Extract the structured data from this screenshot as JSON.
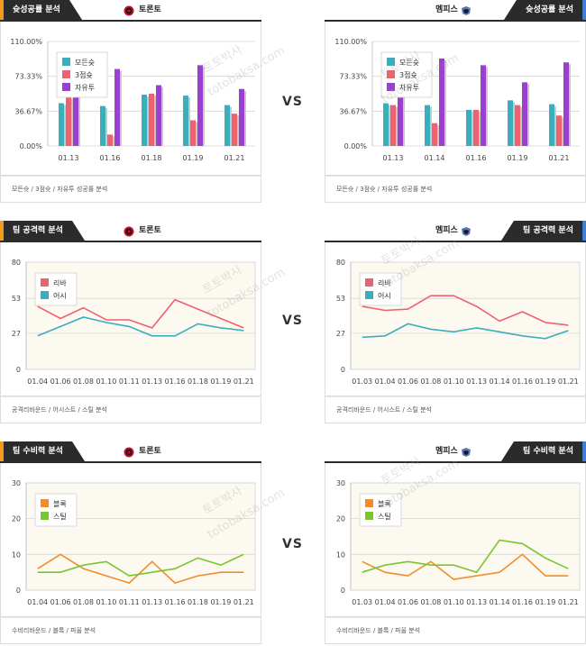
{
  "colors": {
    "bar1": "#3aaebb",
    "bar2": "#ef6070",
    "bar3": "#9b3fd0",
    "line_rebound": "#ef6070",
    "line_assist": "#3aaebb",
    "line_block": "#f28c2a",
    "line_steal": "#7ac52d",
    "plot_bg": "#fcfaf0",
    "tab_bg": "#2b2b2b",
    "tab_accent_left": "#f29a1e",
    "tab_accent_right": "#3d7fd6"
  },
  "vs_label": "VS",
  "watermark": [
    "토토박사",
    "totobaksa.com"
  ],
  "rows": [
    {
      "left": {
        "tab": "슛성공률 분석",
        "team": "토론토",
        "logo_icon": "raptors-logo-icon",
        "caption": "모든슛 / 3점슛 / 자유투 성공률 분석",
        "chart_data": {
          "type": "bar",
          "categories": [
            "01.13",
            "01.16",
            "01.18",
            "01.19",
            "01.21"
          ],
          "ylim": [
            0,
            110
          ],
          "yticks": [
            0,
            36.67,
            73.33,
            110
          ],
          "ytick_labels": [
            "0.00%",
            "36.67%",
            "73.33%",
            "110.00%"
          ],
          "series": [
            {
              "name": "모든슛",
              "values": [
                45,
                42,
                54,
                53,
                43
              ]
            },
            {
              "name": "3점슛",
              "values": [
                52,
                12,
                55,
                27,
                34
              ]
            },
            {
              "name": "자유투",
              "values": [
                62,
                81,
                64,
                85,
                60
              ]
            }
          ],
          "legend": "top-left"
        }
      },
      "right": {
        "tab": "슛성공률 분석",
        "team": "멤피스",
        "logo_icon": "grizzlies-logo-icon",
        "caption": "모든슛 / 3점슛 / 자유투 성공률 분석",
        "chart_data": {
          "type": "bar",
          "categories": [
            "01.13",
            "01.14",
            "01.16",
            "01.19",
            "01.21"
          ],
          "ylim": [
            0,
            110
          ],
          "yticks": [
            0,
            36.67,
            73.33,
            110
          ],
          "ytick_labels": [
            "0.00%",
            "36.67%",
            "73.33%",
            "110.00%"
          ],
          "series": [
            {
              "name": "모든슛",
              "values": [
                45,
                43,
                38,
                48,
                44
              ]
            },
            {
              "name": "3점슛",
              "values": [
                43,
                24,
                38,
                43,
                32
              ]
            },
            {
              "name": "자유투",
              "values": [
                65,
                92,
                85,
                67,
                88
              ]
            }
          ],
          "legend": "top-left"
        }
      }
    },
    {
      "left": {
        "tab": "팀 공격력 분석",
        "team": "토론토",
        "logo_icon": "raptors-logo-icon",
        "caption": "공격리바운드 / 어시스트 / 스틸 분석",
        "chart_data": {
          "type": "line",
          "categories": [
            "01.04",
            "01.06",
            "01.08",
            "01.10",
            "01.11",
            "01.13",
            "01.16",
            "01.18",
            "01.19",
            "01.21"
          ],
          "ylim": [
            0,
            80
          ],
          "yticks": [
            0,
            27,
            53,
            80
          ],
          "ytick_labels": [
            "0",
            "27",
            "53",
            "80"
          ],
          "series": [
            {
              "name": "리바",
              "values": [
                47,
                38,
                46,
                37,
                37,
                31,
                52,
                45,
                38,
                31
              ]
            },
            {
              "name": "어시",
              "values": [
                25,
                32,
                39,
                35,
                32,
                25,
                25,
                34,
                31,
                29
              ]
            }
          ],
          "legend": "top-left"
        }
      },
      "right": {
        "tab": "팀 공격력 분석",
        "team": "멤피스",
        "logo_icon": "grizzlies-logo-icon",
        "caption": "공격리바운드 / 어시스트 / 스틸 분석",
        "chart_data": {
          "type": "line",
          "categories": [
            "01.03",
            "01.04",
            "01.06",
            "01.08",
            "01.10",
            "01.13",
            "01.14",
            "01.16",
            "01.19",
            "01.21"
          ],
          "ylim": [
            0,
            80
          ],
          "yticks": [
            0,
            27,
            53,
            80
          ],
          "ytick_labels": [
            "0",
            "27",
            "53",
            "80"
          ],
          "series": [
            {
              "name": "리바",
              "values": [
                47,
                44,
                45,
                55,
                55,
                47,
                36,
                43,
                35,
                33
              ]
            },
            {
              "name": "어시",
              "values": [
                24,
                25,
                34,
                30,
                28,
                31,
                28,
                25,
                23,
                29
              ]
            }
          ],
          "legend": "top-left"
        }
      }
    },
    {
      "left": {
        "tab": "팀 수비력 분석",
        "team": "토론토",
        "logo_icon": "raptors-logo-icon",
        "caption": "수비리바운드 / 블록 / 파울 분석",
        "chart_data": {
          "type": "line",
          "categories": [
            "01.04",
            "01.06",
            "01.08",
            "01.10",
            "01.11",
            "01.13",
            "01.16",
            "01.18",
            "01.19",
            "01.21"
          ],
          "ylim": [
            0,
            30
          ],
          "yticks": [
            0,
            10,
            20,
            30
          ],
          "ytick_labels": [
            "0",
            "10",
            "20",
            "30"
          ],
          "series": [
            {
              "name": "블록",
              "values": [
                6,
                10,
                6,
                4,
                2,
                8,
                2,
                4,
                5,
                5
              ]
            },
            {
              "name": "스틸",
              "values": [
                5,
                5,
                7,
                8,
                4,
                5,
                6,
                9,
                7,
                10
              ]
            }
          ],
          "legend": "top-left"
        }
      },
      "right": {
        "tab": "팀 수비력 분석",
        "team": "멤피스",
        "logo_icon": "grizzlies-logo-icon",
        "caption": "수비리바운드 / 블록 / 파울 분석",
        "chart_data": {
          "type": "line",
          "categories": [
            "01.03",
            "01.04",
            "01.06",
            "01.08",
            "01.10",
            "01.13",
            "01.14",
            "01.16",
            "01.19",
            "01.21"
          ],
          "ylim": [
            0,
            30
          ],
          "yticks": [
            0,
            10,
            20,
            30
          ],
          "ytick_labels": [
            "0",
            "10",
            "20",
            "30"
          ],
          "series": [
            {
              "name": "블록",
              "values": [
                8,
                5,
                4,
                8,
                3,
                4,
                5,
                10,
                4,
                4
              ]
            },
            {
              "name": "스틸",
              "values": [
                5,
                7,
                8,
                7,
                7,
                5,
                14,
                13,
                9,
                6
              ]
            }
          ],
          "legend": "top-left"
        }
      }
    }
  ]
}
